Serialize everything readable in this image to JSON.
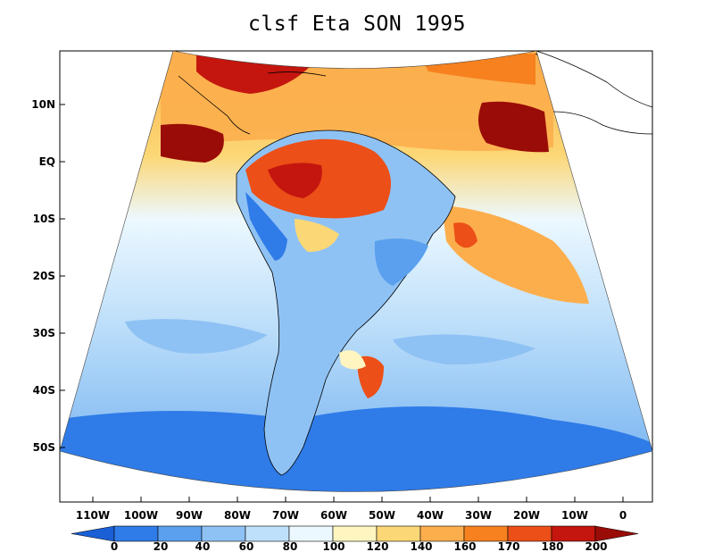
{
  "title": "clsf Eta SON 1995",
  "axes": {
    "lat_labels": [
      "10N",
      "EQ",
      "10S",
      "20S",
      "30S",
      "40S",
      "50S"
    ],
    "lon_labels": [
      "110W",
      "100W",
      "90W",
      "80W",
      "70W",
      "60W",
      "50W",
      "40W",
      "30W",
      "20W",
      "10W",
      "0"
    ]
  },
  "colorbar": {
    "ticks": [
      "0",
      "20",
      "40",
      "60",
      "80",
      "100",
      "120",
      "140",
      "160",
      "170",
      "180",
      "200"
    ],
    "colors": [
      "#1a5fd6",
      "#2f7be8",
      "#5aa0ee",
      "#8fc2f4",
      "#bfe0fa",
      "#ecf8ff",
      "#fff5c0",
      "#fcd775",
      "#fcae4d",
      "#f6811e",
      "#ec4f17",
      "#c4160e",
      "#9a0c08"
    ]
  },
  "chart_data": {
    "type": "heatmap",
    "title": "clsf Eta SON 1995",
    "variable": "clsf",
    "model": "Eta",
    "season": "SON",
    "year": "1995",
    "lat_ticks": [
      "10N",
      "EQ",
      "10S",
      "20S",
      "30S",
      "40S",
      "50S"
    ],
    "lon_ticks": [
      "110W",
      "100W",
      "90W",
      "80W",
      "70W",
      "60W",
      "50W",
      "40W",
      "30W",
      "20W",
      "10W",
      "0"
    ],
    "colorbar_levels": [
      0,
      20,
      40,
      60,
      80,
      100,
      120,
      140,
      160,
      170,
      180,
      200
    ]
  }
}
